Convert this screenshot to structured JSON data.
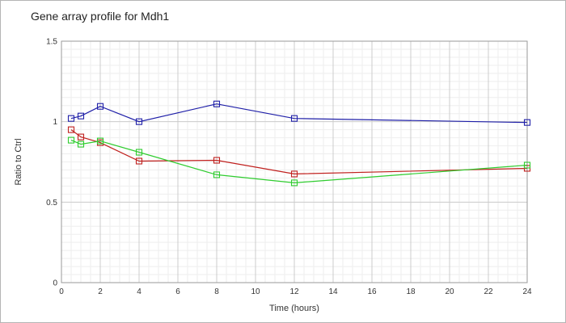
{
  "chart_data": {
    "type": "line",
    "title": "Gene array profile for Mdh1",
    "xlabel": "Time (hours)",
    "ylabel": "Ratio to Ctrl",
    "xlim": [
      0,
      24
    ],
    "ylim": [
      0,
      1.5
    ],
    "x_ticks": [
      0,
      2,
      4,
      6,
      8,
      10,
      12,
      14,
      16,
      18,
      20,
      22,
      24
    ],
    "y_ticks": [
      0,
      0.5,
      1,
      1.5
    ],
    "y_tick_labels": [
      "0",
      "0.5",
      "1",
      "1.5"
    ],
    "grid": true,
    "marker": "square",
    "series": [
      {
        "color": "#1f1fa8",
        "x": [
          0.5,
          1,
          2,
          4,
          8,
          12,
          24
        ],
        "y": [
          1.02,
          1.035,
          1.095,
          1.0,
          1.11,
          1.02,
          0.995
        ]
      },
      {
        "color": "#c0201e",
        "x": [
          0.5,
          1,
          2,
          4,
          8,
          12,
          24
        ],
        "y": [
          0.95,
          0.905,
          0.87,
          0.755,
          0.76,
          0.675,
          0.71
        ]
      },
      {
        "color": "#2ecc2e",
        "x": [
          0.5,
          1,
          2,
          4,
          8,
          12,
          24
        ],
        "y": [
          0.885,
          0.86,
          0.88,
          0.81,
          0.67,
          0.62,
          0.73
        ]
      }
    ]
  }
}
